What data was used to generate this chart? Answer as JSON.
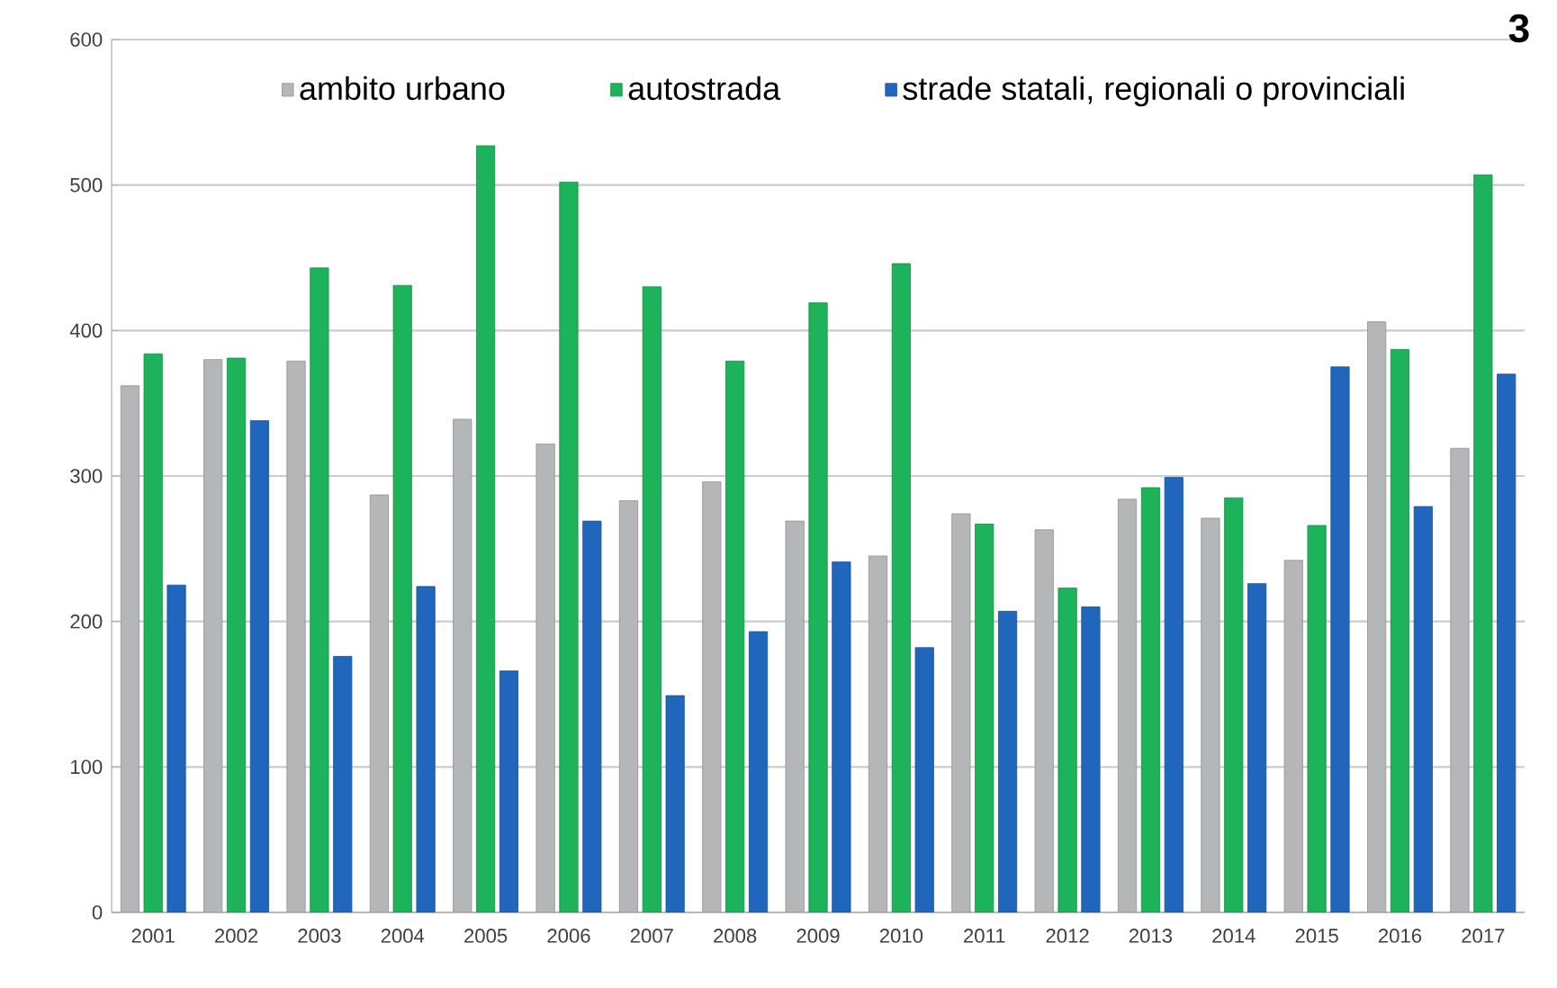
{
  "chart_data": {
    "type": "bar",
    "categories": [
      "2001",
      "2002",
      "2003",
      "2004",
      "2005",
      "2006",
      "2007",
      "2008",
      "2009",
      "2010",
      "2011",
      "2012",
      "2013",
      "2014",
      "2015",
      "2016",
      "2017"
    ],
    "series": [
      {
        "name": "ambito urbano",
        "color": "#b4b6b8",
        "values": [
          362,
          380,
          379,
          287,
          339,
          322,
          283,
          296,
          269,
          245,
          274,
          263,
          284,
          271,
          242,
          406,
          319
        ]
      },
      {
        "name": "autostrada",
        "color": "#1db35a",
        "values": [
          384,
          381,
          443,
          431,
          527,
          502,
          430,
          379,
          419,
          446,
          267,
          223,
          292,
          285,
          266,
          387,
          507
        ]
      },
      {
        "name": "strade statali, regionali o provinciali",
        "color": "#2166bd",
        "values": [
          225,
          338,
          176,
          224,
          166,
          269,
          149,
          193,
          241,
          182,
          207,
          210,
          299,
          226,
          375,
          279,
          370
        ]
      }
    ],
    "ylim": [
      0,
      600
    ],
    "yticks": [
      0,
      100,
      200,
      300,
      400,
      500,
      600
    ],
    "grid": "y",
    "legend": "top",
    "annotations": [
      "3"
    ]
  }
}
